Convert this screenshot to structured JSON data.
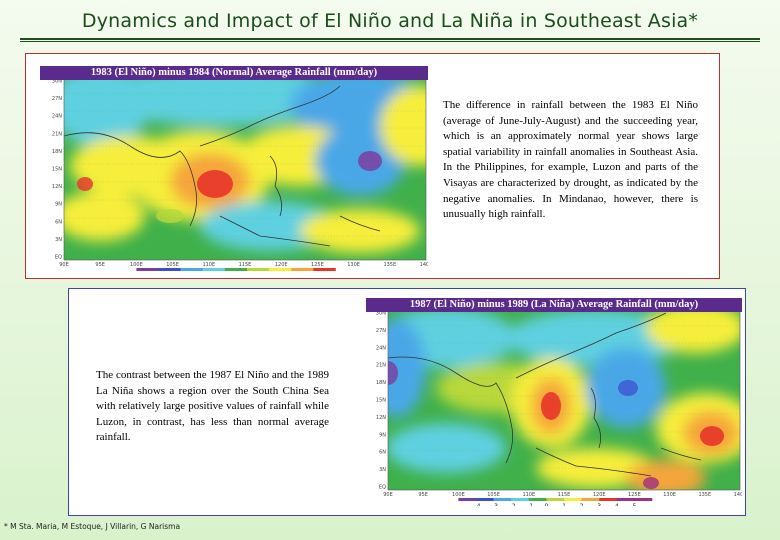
{
  "slide": {
    "title": "Dynamics and Impact of El Niño and La Niña in Southeast Asia*",
    "footnote": "* M Sta. Maria, M Estoque, J Villarin, G Narisma"
  },
  "panel1": {
    "map_title": "1983 (El Niño) minus 1984 (Normal) Average Rainfall (mm/day)",
    "lat_labels": [
      "30N",
      "27N",
      "24N",
      "21N",
      "18N",
      "15N",
      "12N",
      "9N",
      "6N",
      "3N",
      "EQ"
    ],
    "lon_labels": [
      "90E",
      "95E",
      "100E",
      "105E",
      "110E",
      "115E",
      "120E",
      "125E",
      "130E",
      "135E",
      "140E"
    ],
    "colorbar_labels": [
      "−4",
      "−3",
      "−2",
      "−1",
      "0",
      "1",
      "2",
      "3"
    ],
    "description": "The difference in rainfall between the 1983 El Niño (average of June-July-August) and the succeeding year, which is an approximately normal year shows large spatial variability in rainfall anomalies in Southeast Asia.  In the Philippines, for example, Luzon and parts of the Visayas are characterized by drought, as indicated by the negative anomalies.  In Mindanao, however, there is unusually high rainfall."
  },
  "panel2": {
    "map_title": "1987 (El Niño) minus 1989 (La Niña) Average Rainfall  (mm/day)",
    "lat_labels": [
      "30N",
      "27N",
      "24N",
      "21N",
      "18N",
      "15N",
      "12N",
      "9N",
      "6N",
      "3N",
      "EQ"
    ],
    "lon_labels": [
      "90E",
      "95E",
      "100E",
      "105E",
      "110E",
      "115E",
      "120E",
      "125E",
      "130E",
      "135E",
      "140E"
    ],
    "colorbar_labels": [
      "−4",
      "−3",
      "−2",
      "−1",
      "0",
      "1",
      "2",
      "3",
      "4",
      "5"
    ],
    "description": "The contrast between the 1987 El Niño and the 1989 La Niña shows a region over the South China Sea with relatively large positive values of rainfall  while Luzon, in contrast, has less than normal average rainfall."
  },
  "colors": {
    "title": "#1a4d1a",
    "panel1_border": "#c0302a",
    "panel2_border": "#3a44b8",
    "map_title_bg": "#5a2a8c",
    "scale": [
      "#7a3fa0",
      "#3c4fd0",
      "#4aa7e8",
      "#5fd0e0",
      "#3fb04a",
      "#b8d83a",
      "#f6ee3a",
      "#f6a53a",
      "#e8352a",
      "#a03080"
    ]
  }
}
